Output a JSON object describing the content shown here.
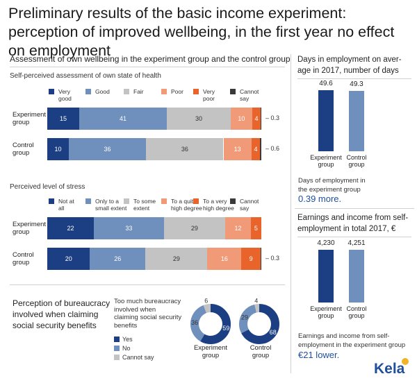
{
  "title": "Preliminary results of the basic income experiment: perception of improved wellbeing, in the first year no effect on employment",
  "colors": {
    "dark_blue": "#1b3f82",
    "mid_blue": "#6f8fbd",
    "grey": "#c3c3c3",
    "light_orange": "#f09a77",
    "orange": "#e8642a",
    "dark": "#3a3a3a",
    "accent_text": "#1f4e9c",
    "donut_track": "#e6e6e6"
  },
  "wellbeing": {
    "section_title": "Assessment of own wellbeing in the experiment group and the control group"
  },
  "chart_data": [
    {
      "type": "bar",
      "orientation": "horizontal-stacked",
      "title": "Self-perceived assessment of own state of health",
      "categories": [
        "Experiment\ngroup",
        "Control\ngroup"
      ],
      "series": [
        {
          "name": "Very\ngood",
          "values": [
            15,
            10
          ]
        },
        {
          "name": "Good",
          "values": [
            41,
            36
          ]
        },
        {
          "name": "Fair",
          "values": [
            30,
            36
          ]
        },
        {
          "name": "Poor",
          "values": [
            10,
            13
          ]
        },
        {
          "name": "Very\npoor",
          "values": [
            4,
            4
          ]
        },
        {
          "name": "Cannot\nsay",
          "values": [
            0.3,
            0.6
          ]
        }
      ]
    },
    {
      "type": "bar",
      "orientation": "horizontal-stacked",
      "title": "Perceived level of stress",
      "categories": [
        "Experiment\ngroup",
        "Control\ngroup"
      ],
      "series": [
        {
          "name": "Not at\nall",
          "values": [
            22,
            20
          ]
        },
        {
          "name": "Only to a\nsmall extent",
          "values": [
            33,
            26
          ]
        },
        {
          "name": "To some\nextent",
          "values": [
            29,
            29
          ]
        },
        {
          "name": "To a quite\nhigh degree",
          "values": [
            12,
            16
          ]
        },
        {
          "name": "To a very\nhigh degree",
          "values": [
            5,
            9
          ]
        },
        {
          "name": "Cannot\nsay",
          "values": [
            0,
            0.3
          ]
        }
      ]
    },
    {
      "type": "bar",
      "title": "Days in employment on aver-\nage in 2017, number of days",
      "categories": [
        "Experiment\ngroup",
        "Control\ngroup"
      ],
      "values": [
        49.6,
        49.3
      ]
    },
    {
      "type": "bar",
      "title": "Earnings and income from self-\nemployment in total 2017, €",
      "categories": [
        "Experiment\ngroup",
        "Control\ngroup"
      ],
      "values": [
        4230,
        4251
      ],
      "value_labels": [
        "4,230",
        "4,251"
      ]
    },
    {
      "type": "pie",
      "variant": "donut",
      "title": "Too much bureaucracy\ninvolved when\nclaiming social security\nbenefits",
      "legend": [
        "Yes",
        "No",
        "Cannot say"
      ],
      "groups": [
        {
          "name": "Experiment\ngroup",
          "values": [
            59,
            36,
            6
          ]
        },
        {
          "name": "Control\ngroup",
          "values": [
            68,
            29,
            4
          ]
        }
      ]
    }
  ],
  "bureaucracy": {
    "section_title": "Perception of bureaucracy\ninvolved when claiming\nsocial security benefits"
  },
  "days_note": {
    "text": "Days of employment in\nthe experiment group",
    "highlight": "0.39 more."
  },
  "earnings_note": {
    "text": "Earnings and income from self-\nemployment in the experiment group",
    "highlight": "€21 lower."
  },
  "logo": {
    "text": "Kela"
  }
}
